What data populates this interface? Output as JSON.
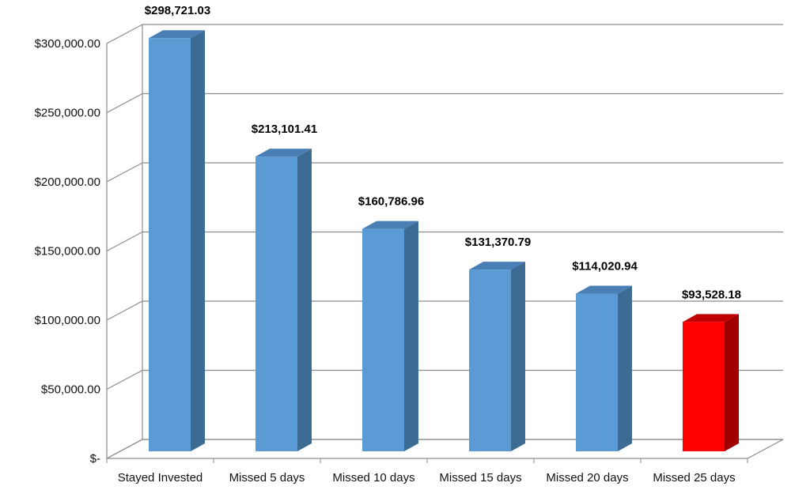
{
  "chart_data": {
    "type": "bar",
    "title": "",
    "xlabel": "",
    "ylabel": "",
    "categories": [
      "Stayed Invested",
      "Missed 5 days",
      "Missed 10 days",
      "Missed 15 days",
      "Missed 20 days",
      "Missed 25 days"
    ],
    "values": [
      298721.03,
      213101.41,
      160786.96,
      131370.79,
      114020.94,
      93528.18
    ],
    "data_labels": [
      "$298,721.03",
      "$213,101.41",
      "$160,786.96",
      "$131,370.79",
      "$114,020.94",
      "$93,528.18"
    ],
    "ylim": [
      0,
      300000
    ],
    "yticks": [
      0,
      50000,
      100000,
      150000,
      200000,
      250000,
      300000
    ],
    "ytick_labels": [
      "$-",
      "$50,000.00",
      "$100,000.00",
      "$150,000.00",
      "$200,000.00",
      "$250,000.00",
      "$300,000.00"
    ],
    "grid": true,
    "legend": "none",
    "style": "3d-column",
    "colors": {
      "bar_front": "#5B9BD5",
      "bar_side": "#3C6C94",
      "bar_top": "#4A7FB5",
      "highlight_front": "#FF0000",
      "highlight_side": "#A00000",
      "highlight_top": "#C00000",
      "gridline": "#8C8C8C"
    },
    "highlight_index": 5
  }
}
